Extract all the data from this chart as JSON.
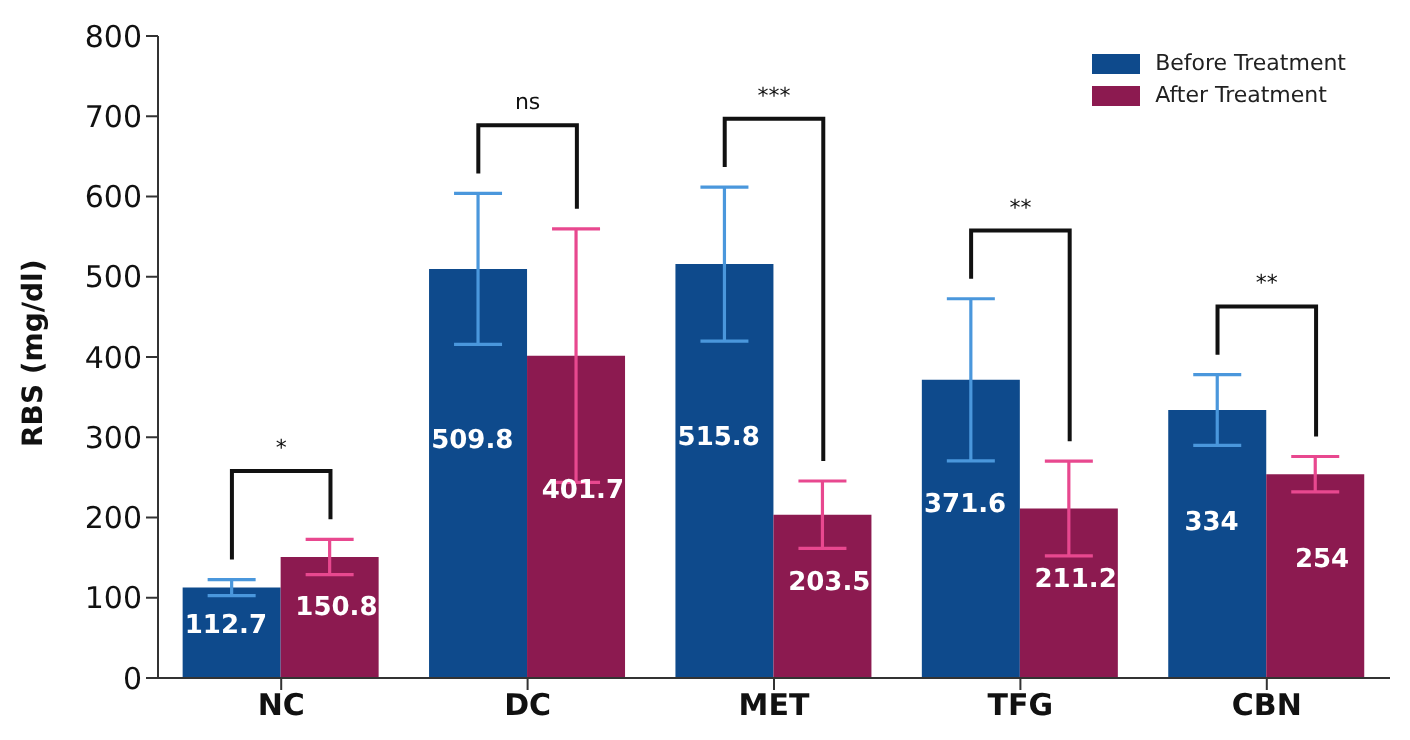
{
  "chart_data": {
    "type": "bar",
    "ylabel": "RBS (mg/dl)",
    "categories": [
      "NC",
      "DC",
      "MET",
      "TFG",
      "CBN"
    ],
    "series": [
      {
        "name": "Before Treatment",
        "color": "#0e4a8c",
        "values": [
          112.7,
          509.8,
          515.8,
          371.6,
          334
        ],
        "errors": [
          10,
          94,
          96,
          101,
          44
        ]
      },
      {
        "name": "After Treatment",
        "color": "#8c1a50",
        "values": [
          150.8,
          401.7,
          203.5,
          211.2,
          254
        ],
        "errors": [
          22,
          158,
          42,
          59,
          22
        ]
      }
    ],
    "ylim": [
      0,
      800
    ],
    "yticks": [
      0,
      100,
      200,
      300,
      400,
      500,
      600,
      700,
      800
    ],
    "legend": "top right",
    "data_labels": true,
    "annotations": [
      "*",
      "ns",
      "***",
      "**",
      "**"
    ]
  }
}
